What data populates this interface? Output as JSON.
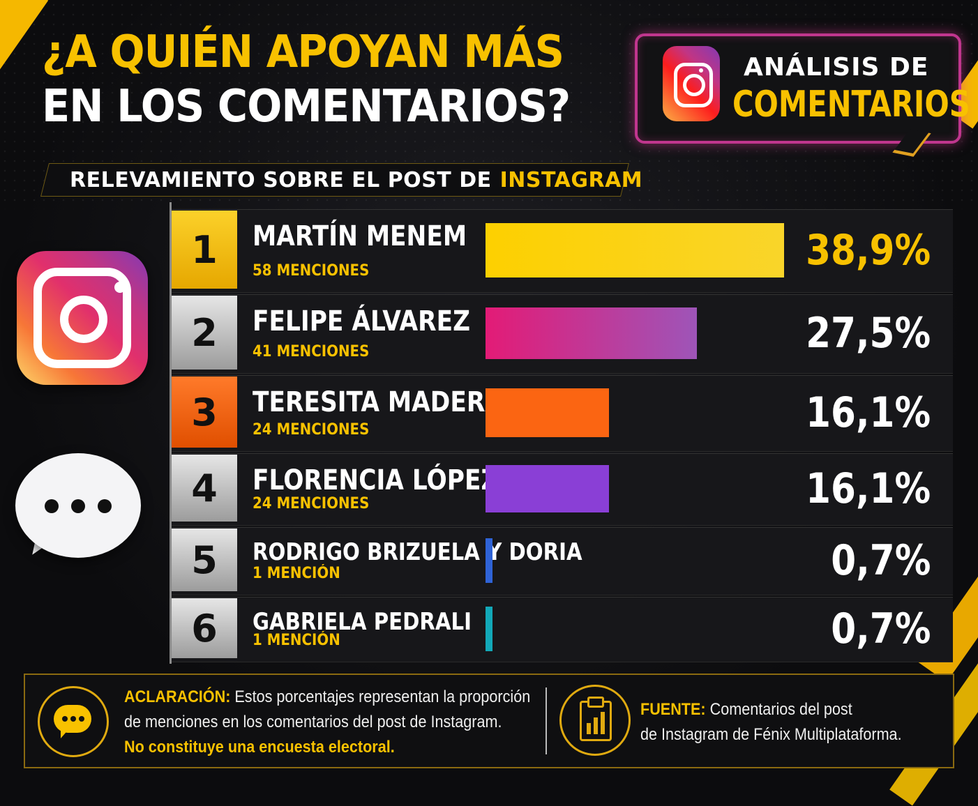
{
  "header": {
    "title_line1": "¿A QUIÉN APOYAN MÁS",
    "title_line2": "EN LOS COMENTARIOS?",
    "subtitle_prefix": "RELEVAMIENTO SOBRE EL POST DE",
    "subtitle_highlight": "INSTAGRAM"
  },
  "badge": {
    "line1": "ANÁLISIS DE",
    "line2": "COMENTARIOS",
    "icon": "instagram-icon"
  },
  "side_icons": [
    "instagram-icon",
    "chat-bubble-icon"
  ],
  "colors": {
    "accent": "#f8c100",
    "rank1": "#f5b800",
    "rank2": "#b5b5b5",
    "rank3": "#f26512"
  },
  "chart_data": {
    "type": "bar",
    "orientation": "horizontal",
    "categories": [
      "MARTÍN MENEM",
      "FELIPE ÁLVAREZ",
      "TERESITA MADERA",
      "FLORENCIA LÓPEZ",
      "RODRIGO BRIZUELA Y DORIA",
      "GABRIELA PEDRALI"
    ],
    "values": [
      38.9,
      27.5,
      16.1,
      16.1,
      0.7,
      0.7
    ],
    "mentions": [
      58,
      41,
      24,
      24,
      1,
      1
    ],
    "ranks": [
      "1",
      "2",
      "3",
      "4",
      "5",
      "6"
    ],
    "value_labels": [
      "38,9%",
      "27,5%",
      "16,1%",
      "16,1%",
      "0,7%",
      "0,7%"
    ],
    "mention_labels": [
      "58 MENCIONES",
      "41 MENCIONES",
      "24 MENCIONES",
      "24 MENCIONES",
      "1 MENCIÓN",
      "1 MENCIÓN"
    ],
    "bar_colors": [
      "#fbd10f",
      "#c93aa2",
      "#fb6512",
      "#8a3fd6",
      "#2f63d6",
      "#12a8b8"
    ],
    "xlim": [
      0,
      38.9
    ]
  },
  "footer": {
    "note_label": "ACLARACIÓN:",
    "note_text1": "Estos porcentajes representan la proporción",
    "note_text2": "de menciones en los comentarios del post de Instagram.",
    "note_text3": "No constituye una encuesta electoral.",
    "source_label": "FUENTE:",
    "source_text1": "Comentarios del post",
    "source_text2": "de Instagram de Fénix Multiplataforma.",
    "note_icon": "chat-bubble-icon",
    "source_icon": "clipboard-chart-icon"
  }
}
